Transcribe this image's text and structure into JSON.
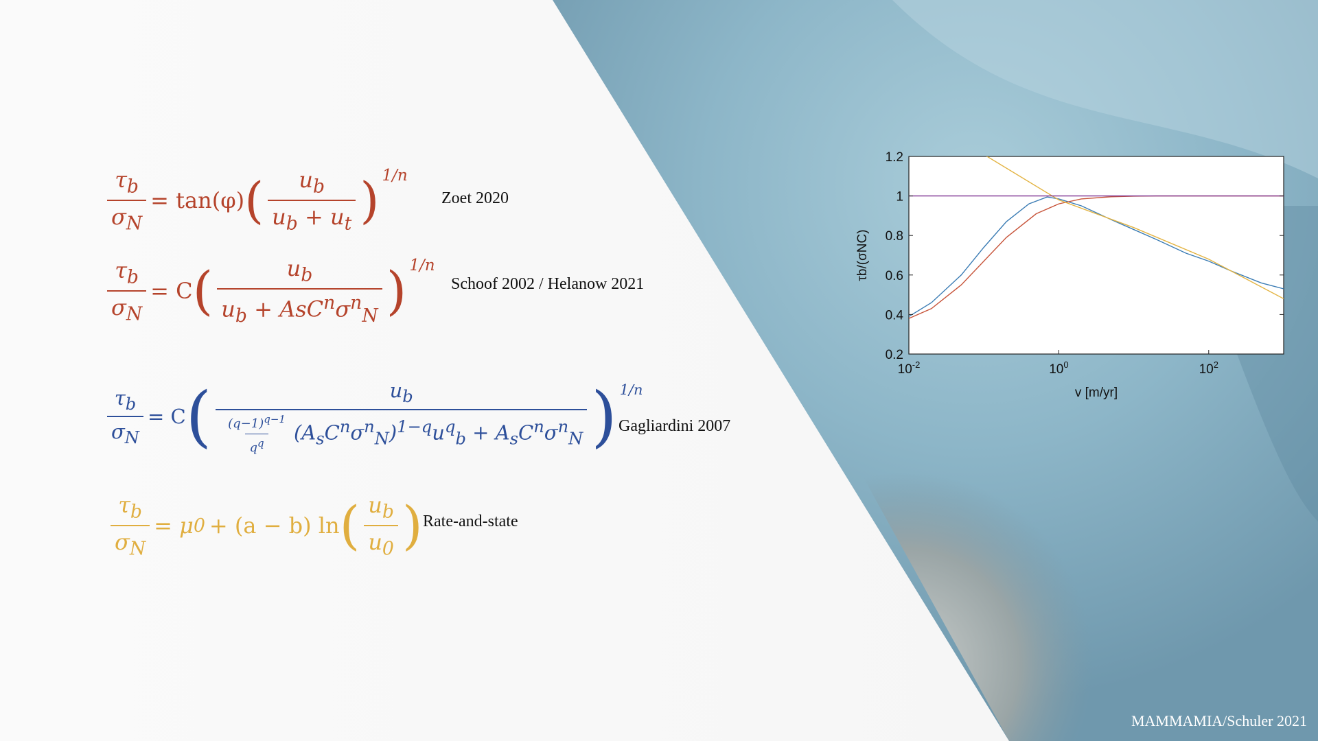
{
  "equations": [
    {
      "name": "zoet",
      "color": "#b5432b",
      "lhs_num": "τ",
      "lhs_num_sub": "b",
      "lhs_den": "σ",
      "lhs_den_sub": "N",
      "rhs_pre": "= tan(φ)",
      "num": "u",
      "num_sub": "b",
      "den": "u",
      "den_sub": "b",
      "den_plus": "+ u",
      "den_plus_sub": "t",
      "exponent": "1/n",
      "reference": "Zoet 2020"
    },
    {
      "name": "schoof",
      "color": "#b5432b",
      "rhs_pre": "= C",
      "num": "u",
      "num_sub": "b",
      "den": "u",
      "den_sub": "b",
      "den_plus": "+ AsC",
      "den_plus_sup": "n",
      "den_sigma": "σ",
      "den_sigma_sup": "n",
      "den_sigma_sub": "N",
      "exponent": "1/n",
      "reference": "Schoof 2002 / Helanow 2021"
    },
    {
      "name": "gagliardini",
      "color": "#2d4f9a",
      "rhs_pre": "= C",
      "num": "u",
      "num_sub": "b",
      "den_frac_num": "(q−1)",
      "den_frac_num_sup": "q−1",
      "den_frac_den": "q",
      "den_frac_den_sup": "q",
      "den_rest": "(A",
      "den_rest_sub": "s",
      "den_rest2": "C",
      "den_rest2_sup": "n",
      "den_rest3": "σ",
      "den_rest3_sup": "n",
      "den_rest3_sub": "N",
      "den_rest4": ")",
      "den_rest4_sup": "1−q",
      "den_rest5": "u",
      "den_rest5_sup": "q",
      "den_rest5_sub": "b",
      "den_rest6": "+ A",
      "den_rest6_sub": "s",
      "den_rest7": "C",
      "den_rest7_sup": "n",
      "den_rest8": "σ",
      "den_rest8_sup": "n",
      "den_rest8_sub": "N",
      "exponent": "1/n",
      "reference": "Gagliardini 2007"
    },
    {
      "name": "rate-state",
      "color": "#e0ae3f",
      "rhs_pre": "= μ",
      "rhs_pre_sub": "0",
      "rhs_mid": "+ (a − b) ln",
      "num": "u",
      "num_sub": "b",
      "den": "u",
      "den_sub": "0",
      "reference": "Rate-and-state"
    }
  ],
  "chart_data": {
    "type": "line",
    "xlabel": "v [m/yr]",
    "ylabel": "τb/(σNC)",
    "xscale": "log",
    "xlim": [
      0.01,
      1000
    ],
    "ylim": [
      0.2,
      1.2
    ],
    "xticks": [
      "10^-2",
      "10^0",
      "10^2"
    ],
    "yticks": [
      "0.2",
      "0.4",
      "0.6",
      "0.8",
      "1",
      "1.2"
    ],
    "grid": false,
    "series": [
      {
        "color": "#3b7cb4",
        "x": [
          0.01,
          0.02,
          0.05,
          0.1,
          0.2,
          0.4,
          0.7,
          1,
          2,
          5,
          10,
          20,
          50,
          100,
          200,
          500,
          1000
        ],
        "y": [
          0.39,
          0.46,
          0.6,
          0.74,
          0.87,
          0.96,
          0.995,
          0.985,
          0.95,
          0.88,
          0.83,
          0.78,
          0.71,
          0.67,
          0.62,
          0.56,
          0.53
        ]
      },
      {
        "color": "#c7543a",
        "x": [
          0.01,
          0.02,
          0.05,
          0.1,
          0.2,
          0.5,
          1,
          2,
          5,
          10,
          20,
          50,
          100,
          1000
        ],
        "y": [
          0.38,
          0.43,
          0.55,
          0.67,
          0.79,
          0.91,
          0.96,
          0.985,
          0.996,
          0.999,
          1,
          1,
          1,
          1
        ]
      },
      {
        "color": "#e3b341",
        "x": [
          0.1,
          1,
          10,
          100,
          1000
        ],
        "y": [
          1.21,
          0.98,
          0.84,
          0.68,
          0.48
        ]
      },
      {
        "color": "#7b2f8f",
        "x": [
          0.01,
          1000
        ],
        "y": [
          1,
          1
        ]
      }
    ]
  },
  "credit": "MAMMAMIA/Schuler 2021"
}
